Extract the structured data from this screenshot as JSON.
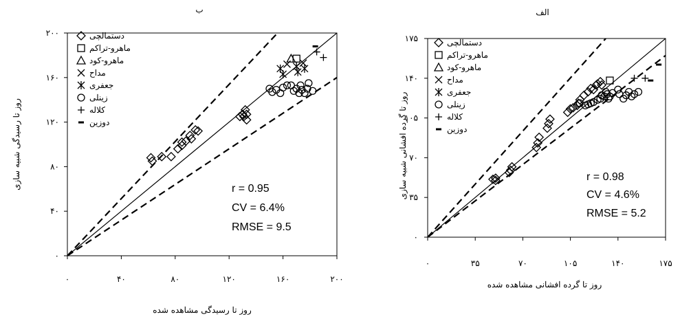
{
  "chart_data": [
    {
      "id": "b",
      "type": "scatter",
      "title": "ب",
      "xlabel": "روز تا رسیدگی مشاهده شده",
      "ylabel": "روز تا رسیدگی شبیه سازی",
      "xlim": [
        0,
        200
      ],
      "ylim": [
        0,
        200
      ],
      "xticks": [
        {
          "v": 0,
          "label": "۰"
        },
        {
          "v": 40,
          "label": "۴۰"
        },
        {
          "v": 80,
          "label": "۸۰"
        },
        {
          "v": 120,
          "label": "۱۲۰"
        },
        {
          "v": 160,
          "label": "۱۶۰"
        },
        {
          "v": 200,
          "label": "۲۰۰"
        }
      ],
      "yticks": [
        {
          "v": 0,
          "label": "۰"
        },
        {
          "v": 40,
          "label": "۴۰"
        },
        {
          "v": 80,
          "label": "۸۰"
        },
        {
          "v": 120,
          "label": "۱۲۰"
        },
        {
          "v": 160,
          "label": "۱۶۰"
        },
        {
          "v": 200,
          "label": "۲۰۰"
        }
      ],
      "lines": [
        {
          "style": "solid",
          "from": [
            0,
            0
          ],
          "to": [
            200,
            200
          ]
        },
        {
          "style": "dashed",
          "from": [
            0,
            0
          ],
          "to": [
            156,
            200
          ]
        },
        {
          "style": "dashed",
          "from": [
            0,
            0
          ],
          "to": [
            200,
            160
          ]
        }
      ],
      "stats": {
        "r": "r = 0.95",
        "cv": "CV = 6.4%",
        "rmse": "RMSE = 9.5"
      },
      "series": [
        {
          "name": "دستمالچی",
          "marker": "diamond",
          "points": [
            [
              62,
              88
            ],
            [
              63,
              85
            ],
            [
              70,
              89
            ],
            [
              77,
              89
            ],
            [
              82,
              96
            ],
            [
              85,
              99
            ],
            [
              85,
              102
            ],
            [
              88,
              103
            ],
            [
              91,
              108
            ],
            [
              92,
              105
            ],
            [
              95,
              113
            ],
            [
              97,
              112
            ],
            [
              128,
              125
            ],
            [
              130,
              127
            ],
            [
              131,
              125
            ],
            [
              132,
              131
            ],
            [
              133,
              127
            ],
            [
              133,
              122
            ]
          ]
        },
        {
          "name": "ماهرو-تراکم",
          "marker": "square",
          "points": [
            [
              170,
              177
            ]
          ]
        },
        {
          "name": "ماهرو-کود",
          "marker": "triangle",
          "points": [
            [
              166,
              177
            ]
          ]
        },
        {
          "name": "مداح",
          "marker": "x",
          "points": [
            [
              163,
              172
            ],
            [
              175,
              173
            ]
          ]
        },
        {
          "name": "جعفری",
          "marker": "asterisk",
          "points": [
            [
              158,
              168
            ],
            [
              160,
              163
            ],
            [
              170,
              170
            ],
            [
              171,
              165
            ],
            [
              176,
              168
            ]
          ]
        },
        {
          "name": "زینلی",
          "marker": "circle",
          "points": [
            [
              150,
              150
            ],
            [
              152,
              147
            ],
            [
              155,
              149
            ],
            [
              158,
              146
            ],
            [
              160,
              151
            ],
            [
              163,
              153
            ],
            [
              166,
              153
            ],
            [
              168,
              148
            ],
            [
              170,
              150
            ],
            [
              172,
              146
            ],
            [
              173,
              153
            ],
            [
              174,
              149
            ],
            [
              176,
              146
            ],
            [
              178,
              150
            ],
            [
              179,
              155
            ],
            [
              182,
              148
            ]
          ]
        },
        {
          "name": "کلاله",
          "marker": "plus",
          "points": [
            [
              185,
              183
            ],
            [
              190,
              178
            ]
          ]
        },
        {
          "name": "دوزین",
          "marker": "dash",
          "points": [
            [
              184,
              188
            ]
          ]
        }
      ]
    },
    {
      "id": "alef",
      "type": "scatter",
      "title": "الف",
      "xlabel": "روز تا گرده افشانی مشاهده شده",
      "ylabel": "روز تا گرده افشانی شبیه سازی",
      "xlim": [
        0,
        175
      ],
      "ylim": [
        0,
        175
      ],
      "xticks": [
        {
          "v": 0,
          "label": "۰"
        },
        {
          "v": 35,
          "label": "۳۵"
        },
        {
          "v": 70,
          "label": "۷۰"
        },
        {
          "v": 105,
          "label": "۱۰۵"
        },
        {
          "v": 140,
          "label": "۱۴۰"
        },
        {
          "v": 175,
          "label": "۱۷۵"
        }
      ],
      "yticks": [
        {
          "v": 0,
          "label": "۰"
        },
        {
          "v": 35,
          "label": "۳۵"
        },
        {
          "v": 70,
          "label": "۷۰"
        },
        {
          "v": 105,
          "label": "۱۰۵"
        },
        {
          "v": 140,
          "label": "۱۴۰"
        },
        {
          "v": 175,
          "label": "۱۷۵"
        }
      ],
      "lines": [
        {
          "style": "solid",
          "from": [
            0,
            0
          ],
          "to": [
            175,
            175
          ]
        },
        {
          "style": "dashed",
          "from": [
            0,
            0
          ],
          "to": [
            131,
            175
          ]
        },
        {
          "style": "dashed",
          "from": [
            0,
            0
          ],
          "to": [
            175,
            160
          ]
        }
      ],
      "stats": {
        "r": "r = 0.98",
        "cv": "CV = 4.6%",
        "rmse": "RMSE = 5.2"
      },
      "series": [
        {
          "name": "دستمالچی",
          "marker": "diamond",
          "points": [
            [
              48,
              51
            ],
            [
              50,
              50
            ],
            [
              50,
              52
            ],
            [
              60,
              57
            ],
            [
              61,
              59
            ],
            [
              62,
              62
            ],
            [
              80,
              79
            ],
            [
              81,
              83
            ],
            [
              82,
              88
            ],
            [
              88,
              96
            ],
            [
              89,
              100
            ],
            [
              90,
              104
            ],
            [
              103,
              110
            ],
            [
              105,
              113
            ],
            [
              107,
              114
            ],
            [
              110,
              116
            ],
            [
              111,
              118
            ],
            [
              112,
              121
            ],
            [
              115,
              125
            ],
            [
              118,
              128
            ],
            [
              120,
              131
            ],
            [
              122,
              130
            ],
            [
              124,
              134
            ],
            [
              125,
              135
            ],
            [
              127,
              137
            ],
            [
              128,
              134
            ]
          ]
        },
        {
          "name": "ماهرو-تراکم",
          "marker": "square",
          "points": [
            [
              134,
              138
            ]
          ]
        },
        {
          "name": "ماهرو-کود",
          "marker": "triangle",
          "points": []
        },
        {
          "name": "مداح",
          "marker": "x",
          "points": []
        },
        {
          "name": "جعفری",
          "marker": "asterisk",
          "points": []
        },
        {
          "name": "زینلی",
          "marker": "circle",
          "points": [
            [
              112,
              118
            ],
            [
              116,
              116
            ],
            [
              118,
              117
            ],
            [
              120,
              118
            ],
            [
              122,
              119
            ],
            [
              125,
              121
            ],
            [
              127,
              122
            ],
            [
              128,
              125
            ],
            [
              130,
              124
            ],
            [
              131,
              128
            ],
            [
              132,
              126
            ],
            [
              133,
              122
            ],
            [
              134,
              124
            ],
            [
              136,
              127
            ],
            [
              140,
              130
            ],
            [
              141,
              126
            ],
            [
              144,
              122
            ],
            [
              146,
              125
            ],
            [
              148,
              128
            ],
            [
              150,
              124
            ],
            [
              152,
              126
            ],
            [
              155,
              128
            ]
          ]
        },
        {
          "name": "کلاله",
          "marker": "plus",
          "points": [
            [
              152,
              140
            ],
            [
              160,
              140
            ]
          ]
        },
        {
          "name": "دوزین",
          "marker": "dash",
          "points": [
            [
              164,
              138
            ],
            [
              170,
              152
            ]
          ]
        }
      ]
    }
  ]
}
